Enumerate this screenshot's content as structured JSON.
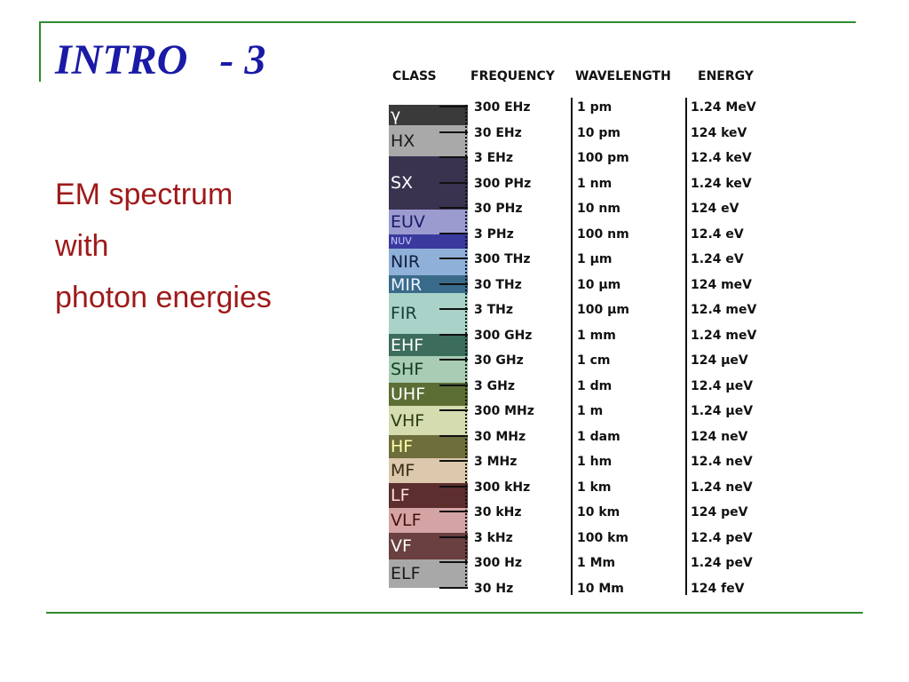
{
  "slide": {
    "title": "INTRO   - 3",
    "bullets": [
      "EM spectrum",
      "with",
      "photon energies"
    ]
  },
  "chart_data": {
    "type": "table",
    "columns": [
      "CLASS",
      "FREQUENCY",
      "WAVELENGTH",
      "ENERGY"
    ],
    "classes": [
      "γ",
      "HX",
      "SX",
      "EUV",
      "NUV",
      "NIR",
      "MIR",
      "FIR",
      "EHF",
      "SHF",
      "UHF",
      "VHF",
      "HF",
      "MF",
      "LF",
      "VLF",
      "VF",
      "ELF"
    ],
    "rows": [
      {
        "frequency": "300 EHz",
        "wavelength": "1 pm",
        "energy": "1.24 MeV"
      },
      {
        "frequency": "30 EHz",
        "wavelength": "10 pm",
        "energy": "124 keV"
      },
      {
        "frequency": "3 EHz",
        "wavelength": "100 pm",
        "energy": "12.4 keV"
      },
      {
        "frequency": "300 PHz",
        "wavelength": "1 nm",
        "energy": "1.24 keV"
      },
      {
        "frequency": "30 PHz",
        "wavelength": "10 nm",
        "energy": "124 eV"
      },
      {
        "frequency": "3 PHz",
        "wavelength": "100 nm",
        "energy": "12.4 eV"
      },
      {
        "frequency": "300 THz",
        "wavelength": "1 μm",
        "energy": "1.24 eV"
      },
      {
        "frequency": "30 THz",
        "wavelength": "10 μm",
        "energy": "124 meV"
      },
      {
        "frequency": "3 THz",
        "wavelength": "100 μm",
        "energy": "12.4 meV"
      },
      {
        "frequency": "300 GHz",
        "wavelength": "1 mm",
        "energy": "1.24 meV"
      },
      {
        "frequency": "30 GHz",
        "wavelength": "1 cm",
        "energy": "124 μeV"
      },
      {
        "frequency": "3 GHz",
        "wavelength": "1 dm",
        "energy": "12.4 μeV"
      },
      {
        "frequency": "300 MHz",
        "wavelength": "1 m",
        "energy": "1.24 μeV"
      },
      {
        "frequency": "30 MHz",
        "wavelength": "1 dam",
        "energy": "124 neV"
      },
      {
        "frequency": "3 MHz",
        "wavelength": "1 hm",
        "energy": "12.4 neV"
      },
      {
        "frequency": "300 kHz",
        "wavelength": "1 km",
        "energy": "1.24 neV"
      },
      {
        "frequency": "30 kHz",
        "wavelength": "10 km",
        "energy": "124 peV"
      },
      {
        "frequency": "3 kHz",
        "wavelength": "100 km",
        "energy": "12.4 peV"
      },
      {
        "frequency": "300 Hz",
        "wavelength": "1 Mm",
        "energy": "1.24 peV"
      },
      {
        "frequency": "30 Hz",
        "wavelength": "10 Mm",
        "energy": "124 feV"
      }
    ],
    "colors": {
      "title": "#1a1aa6",
      "bullets": "#9e1a1a",
      "rules": "#2e8b2e"
    }
  }
}
